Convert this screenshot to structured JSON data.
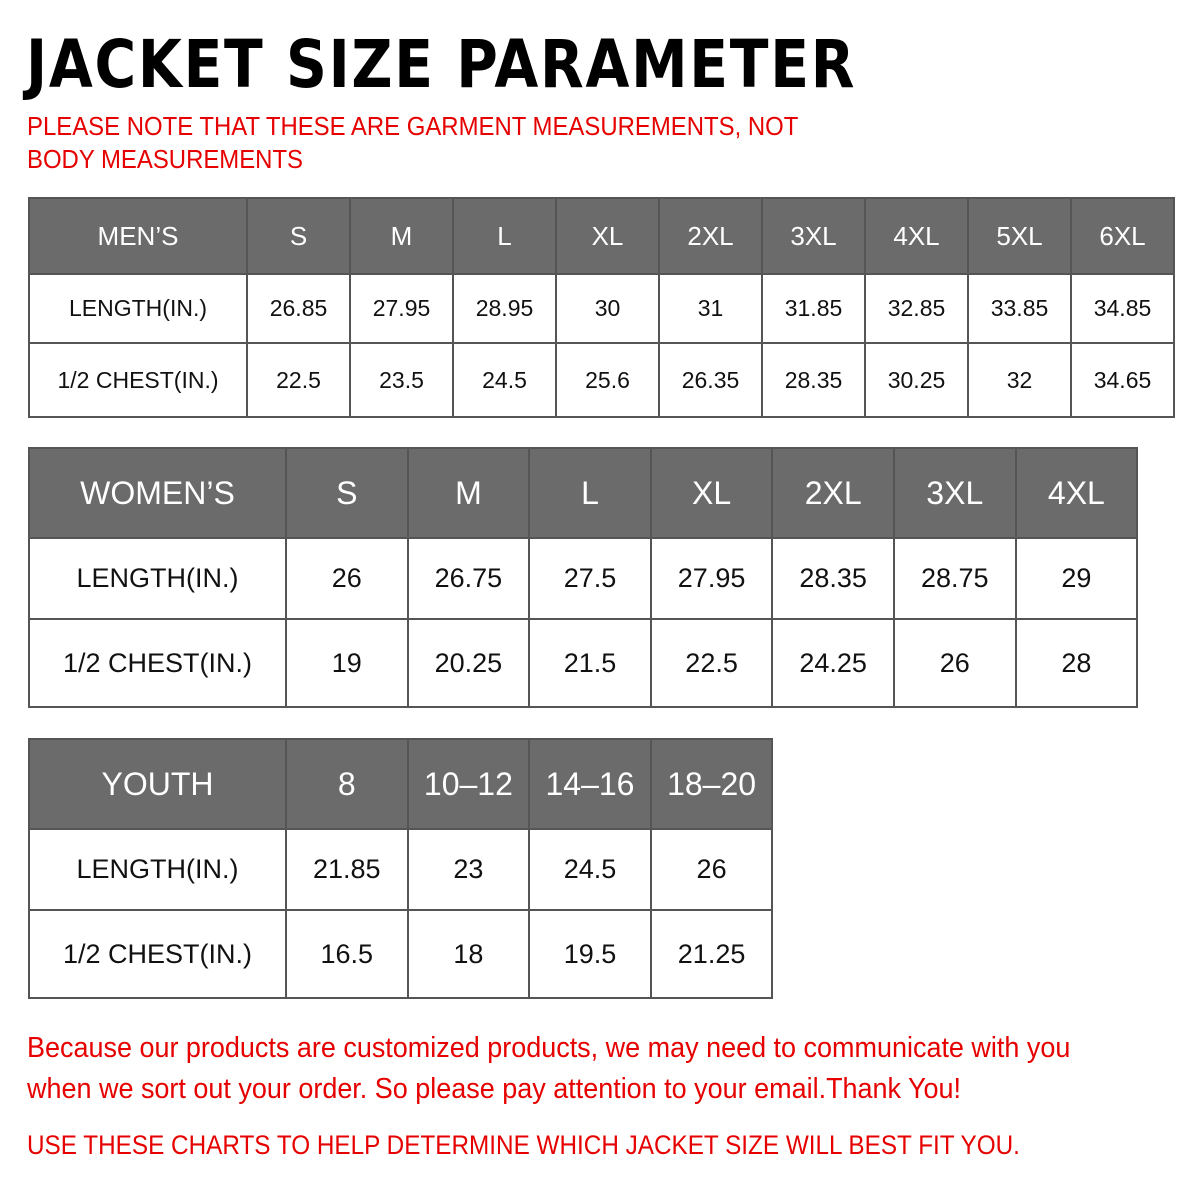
{
  "title": "JACKET  SIZE  PARAMETER",
  "note": "PLEASE NOTE THAT THESE ARE GARMENT MEASUREMENTS, NOT BODY MEASUREMENTS",
  "accent_color": "#e60000",
  "header_color": "#6b6b6b",
  "tables": [
    {
      "id": "men",
      "label": "MEN’S",
      "sizes": [
        "S",
        "M",
        "L",
        "XL",
        "2XL",
        "3XL",
        "4XL",
        "5XL",
        "6XL"
      ],
      "rows": [
        {
          "label": "LENGTH(IN.)",
          "values": [
            "26.85",
            "27.95",
            "28.95",
            "30",
            "31",
            "31.85",
            "32.85",
            "33.85",
            "34.85"
          ]
        },
        {
          "label": "1/2 CHEST(IN.)",
          "values": [
            "22.5",
            "23.5",
            "24.5",
            "25.6",
            "26.35",
            "28.35",
            "30.25",
            "32",
            "34.65"
          ]
        }
      ]
    },
    {
      "id": "women",
      "label": "WOMEN’S",
      "sizes": [
        "S",
        "M",
        "L",
        "XL",
        "2XL",
        "3XL",
        "4XL"
      ],
      "rows": [
        {
          "label": "LENGTH(IN.)",
          "values": [
            "26",
            "26.75",
            "27.5",
            "27.95",
            "28.35",
            "28.75",
            "29"
          ]
        },
        {
          "label": "1/2 CHEST(IN.)",
          "values": [
            "19",
            "20.25",
            "21.5",
            "22.5",
            "24.25",
            "26",
            "28"
          ]
        }
      ]
    },
    {
      "id": "youth",
      "label": "YOUTH",
      "sizes": [
        "8",
        "10–12",
        "14–16",
        "18–20"
      ],
      "rows": [
        {
          "label": "LENGTH(IN.)",
          "values": [
            "21.85",
            "23",
            "24.5",
            "26"
          ]
        },
        {
          "label": "1/2 CHEST(IN.)",
          "values": [
            "16.5",
            "18",
            "19.5",
            "21.25"
          ]
        }
      ]
    }
  ],
  "footer": "Because our products are customized products, we may need to communicate with you when we sort out your order. So please pay attention to your email.Thank You!",
  "footer2": "USE THESE CHARTS TO HELP DETERMINE WHICH JACKET SIZE WILL BEST FIT YOU."
}
